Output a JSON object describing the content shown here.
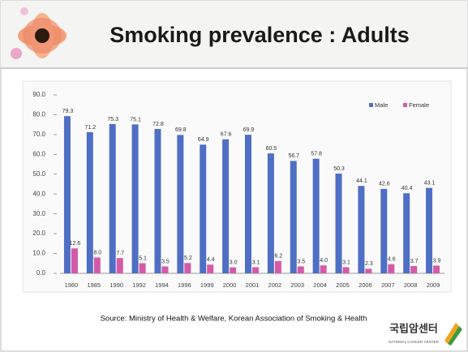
{
  "header": {
    "title": "Smoking prevalence : Adults"
  },
  "chart_data": {
    "type": "bar",
    "categories": [
      "1980",
      "1985",
      "1990",
      "1992",
      "1994",
      "1996",
      "1999",
      "2000",
      "2001",
      "2002",
      "2003",
      "2004",
      "2005",
      "2006",
      "2007",
      "2008",
      "2009"
    ],
    "series": [
      {
        "name": "Male",
        "color": "#4f6fc4",
        "values": [
          79.3,
          71.2,
          75.3,
          75.1,
          72.8,
          69.8,
          64.9,
          67.6,
          69.9,
          60.5,
          56.7,
          57.8,
          50.3,
          44.1,
          42.6,
          40.4,
          43.1
        ],
        "value_labels": [
          "79.3",
          "71.2",
          "75.3",
          "75.1",
          "72.8",
          "69.8",
          "64.9",
          "67.6",
          "69.9",
          "60.5",
          "56.7",
          "57.8",
          "50.3",
          "44.1",
          "42.6",
          "40.4",
          "43.1"
        ]
      },
      {
        "name": "Female",
        "color": "#d45aa8",
        "values": [
          12.6,
          8,
          7.7,
          5.1,
          3.5,
          5.2,
          4.4,
          3,
          3.1,
          6.2,
          3.5,
          4,
          3.1,
          2.3,
          4.6,
          3.7,
          3.9
        ],
        "value_labels": [
          "12.6",
          "8.0",
          "7.7",
          "5.1",
          "3.5",
          "5.2",
          "4.4",
          "3.0",
          "3.1",
          "6.2",
          "3.5",
          "4.0",
          "3.1",
          "2.3",
          "4.6",
          "3.7",
          "3.9"
        ]
      }
    ],
    "ylim": [
      0,
      90
    ],
    "yticks": [
      {
        "value": 0,
        "label": "0.0"
      },
      {
        "value": 10,
        "label": "10.0"
      },
      {
        "value": 20,
        "label": "20.0"
      },
      {
        "value": 30,
        "label": "30.0"
      },
      {
        "value": 40,
        "label": "40.0"
      },
      {
        "value": 50,
        "label": "50.0"
      },
      {
        "value": 60,
        "label": "60.0"
      },
      {
        "value": 70,
        "label": "70.0"
      },
      {
        "value": 80,
        "label": "80.0"
      },
      {
        "value": 90,
        "label": "90.0"
      }
    ],
    "legend": "top-right"
  },
  "source": "Source: Ministry of Health & Welfare, Korean Association of Smoking & Health",
  "logo": {
    "text": "국립암센터",
    "subtext": "NATIONAL CANCER CENTER"
  }
}
